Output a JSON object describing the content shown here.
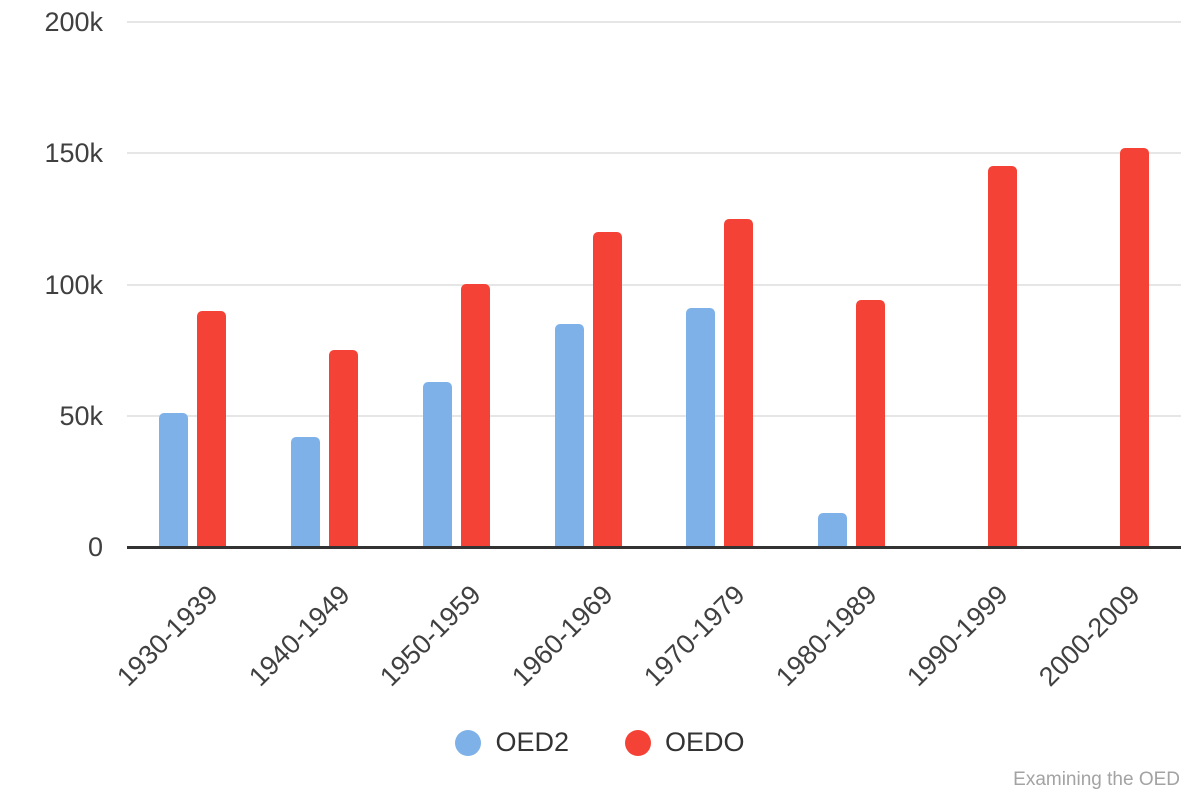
{
  "chart_data": {
    "type": "bar",
    "title": "",
    "xlabel": "",
    "ylabel": "",
    "categories": [
      "1930-1939",
      "1940-1949",
      "1950-1959",
      "1960-1969",
      "1970-1979",
      "1980-1989",
      "1990-1999",
      "2000-2009"
    ],
    "series": [
      {
        "name": "OED2",
        "color": "#7db1e8",
        "values": [
          51000,
          42000,
          63000,
          85000,
          91000,
          13000,
          0,
          0
        ]
      },
      {
        "name": "OEDO",
        "color": "#f44336",
        "values": [
          90000,
          75000,
          100000,
          120000,
          125000,
          94000,
          145000,
          152000
        ]
      }
    ],
    "ylim": [
      0,
      200000
    ],
    "yticks": [
      {
        "label": "0",
        "value": 0
      },
      {
        "label": "50k",
        "value": 50000
      },
      {
        "label": "100k",
        "value": 100000
      },
      {
        "label": "150k",
        "value": 150000
      },
      {
        "label": "200k",
        "value": 200000
      }
    ],
    "grid": true,
    "legend_position": "bottom",
    "gridline_color": "#e6e6e6",
    "axis_line_color": "#333333",
    "tick_label_color": "#404040"
  },
  "footer": {
    "credit": "Examining the OED"
  }
}
